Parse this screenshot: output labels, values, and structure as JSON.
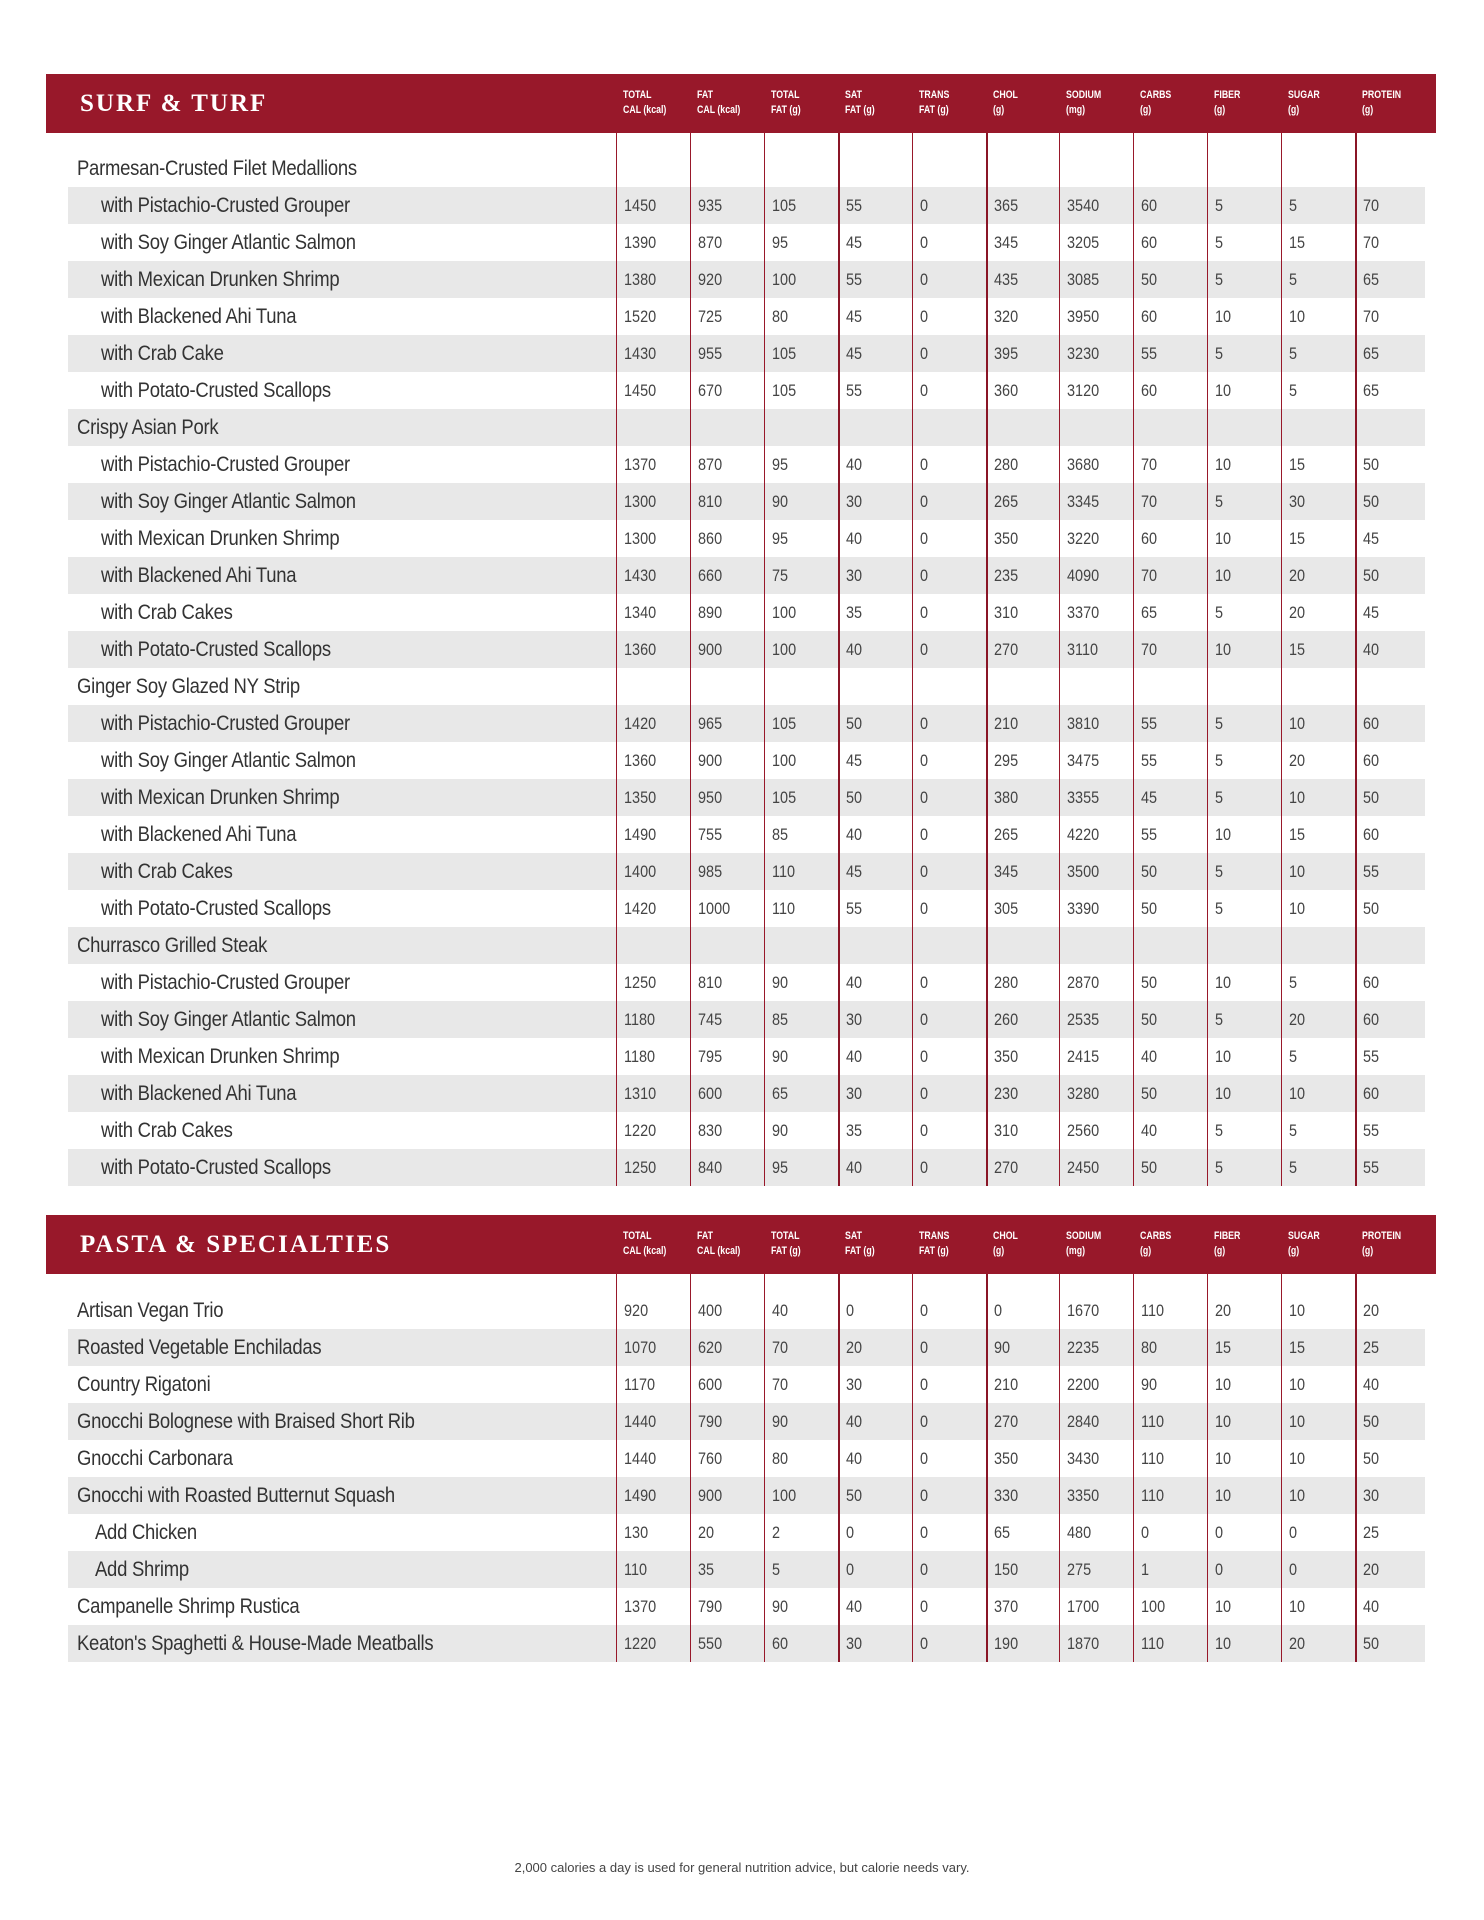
{
  "colors": {
    "brand": "#98182a",
    "row_shade": "#e8e8e8"
  },
  "columns": [
    "TOTAL\nCAL (kcal)",
    "FAT\nCAL (kcal)",
    "TOTAL\nFAT (g)",
    "SAT\nFAT (g)",
    "TRANS\nFAT (g)",
    "CHOL\n(g)",
    "SODIUM\n(mg)",
    "CARBS\n(g)",
    "FIBER\n(g)",
    "SUGAR\n(g)",
    "PROTEIN\n(g)"
  ],
  "sections": [
    {
      "title": "SURF & TURF",
      "rows": [
        {
          "name": "Parmesan-Crusted Filet Medallions",
          "level": 0,
          "values": []
        },
        {
          "name": "with Pistachio-Crusted Grouper",
          "level": 1,
          "values": [
            "1450",
            "935",
            "105",
            "55",
            "0",
            "365",
            "3540",
            "60",
            "5",
            "5",
            "70"
          ]
        },
        {
          "name": "with Soy Ginger Atlantic Salmon",
          "level": 1,
          "values": [
            "1390",
            "870",
            "95",
            "45",
            "0",
            "345",
            "3205",
            "60",
            "5",
            "15",
            "70"
          ]
        },
        {
          "name": "with Mexican Drunken Shrimp",
          "level": 1,
          "values": [
            "1380",
            "920",
            "100",
            "55",
            "0",
            "435",
            "3085",
            "50",
            "5",
            "5",
            "65"
          ]
        },
        {
          "name": "with Blackened Ahi Tuna",
          "level": 1,
          "values": [
            "1520",
            "725",
            "80",
            "45",
            "0",
            "320",
            "3950",
            "60",
            "10",
            "10",
            "70"
          ]
        },
        {
          "name": "with Crab Cake",
          "level": 1,
          "values": [
            "1430",
            "955",
            "105",
            "45",
            "0",
            "395",
            "3230",
            "55",
            "5",
            "5",
            "65"
          ]
        },
        {
          "name": "with Potato-Crusted Scallops",
          "level": 1,
          "values": [
            "1450",
            "670",
            "105",
            "55",
            "0",
            "360",
            "3120",
            "60",
            "10",
            "5",
            "65"
          ]
        },
        {
          "name": "Crispy Asian Pork",
          "level": 0,
          "values": []
        },
        {
          "name": "with Pistachio-Crusted Grouper",
          "level": 1,
          "values": [
            "1370",
            "870",
            "95",
            "40",
            "0",
            "280",
            "3680",
            "70",
            "10",
            "15",
            "50"
          ]
        },
        {
          "name": "with Soy Ginger Atlantic Salmon",
          "level": 1,
          "values": [
            "1300",
            "810",
            "90",
            "30",
            "0",
            "265",
            "3345",
            "70",
            "5",
            "30",
            "50"
          ]
        },
        {
          "name": "with Mexican Drunken Shrimp",
          "level": 1,
          "values": [
            "1300",
            "860",
            "95",
            "40",
            "0",
            "350",
            "3220",
            "60",
            "10",
            "15",
            "45"
          ]
        },
        {
          "name": "with Blackened Ahi Tuna",
          "level": 1,
          "values": [
            "1430",
            "660",
            "75",
            "30",
            "0",
            "235",
            "4090",
            "70",
            "10",
            "20",
            "50"
          ]
        },
        {
          "name": "with Crab Cakes",
          "level": 1,
          "values": [
            "1340",
            "890",
            "100",
            "35",
            "0",
            "310",
            "3370",
            "65",
            "5",
            "20",
            "45"
          ]
        },
        {
          "name": "with Potato-Crusted Scallops",
          "level": 1,
          "values": [
            "1360",
            "900",
            "100",
            "40",
            "0",
            "270",
            "3110",
            "70",
            "10",
            "15",
            "40"
          ]
        },
        {
          "name": "Ginger Soy Glazed NY Strip",
          "level": 0,
          "values": []
        },
        {
          "name": "with Pistachio-Crusted Grouper",
          "level": 1,
          "values": [
            "1420",
            "965",
            "105",
            "50",
            "0",
            "210",
            "3810",
            "55",
            "5",
            "10",
            "60"
          ]
        },
        {
          "name": "with Soy Ginger Atlantic Salmon",
          "level": 1,
          "values": [
            "1360",
            "900",
            "100",
            "45",
            "0",
            "295",
            "3475",
            "55",
            "5",
            "20",
            "60"
          ]
        },
        {
          "name": "with Mexican Drunken Shrimp",
          "level": 1,
          "values": [
            "1350",
            "950",
            "105",
            "50",
            "0",
            "380",
            "3355",
            "45",
            "5",
            "10",
            "50"
          ]
        },
        {
          "name": "with Blackened Ahi Tuna",
          "level": 1,
          "values": [
            "1490",
            "755",
            "85",
            "40",
            "0",
            "265",
            "4220",
            "55",
            "10",
            "15",
            "60"
          ]
        },
        {
          "name": "with Crab Cakes",
          "level": 1,
          "values": [
            "1400",
            "985",
            "110",
            "45",
            "0",
            "345",
            "3500",
            "50",
            "5",
            "10",
            "55"
          ]
        },
        {
          "name": "with Potato-Crusted Scallops",
          "level": 1,
          "values": [
            "1420",
            "1000",
            "110",
            "55",
            "0",
            "305",
            "3390",
            "50",
            "5",
            "10",
            "50"
          ]
        },
        {
          "name": "Churrasco Grilled Steak",
          "level": 0,
          "values": []
        },
        {
          "name": "with Pistachio-Crusted Grouper",
          "level": 1,
          "values": [
            "1250",
            "810",
            "90",
            "40",
            "0",
            "280",
            "2870",
            "50",
            "10",
            "5",
            "60"
          ]
        },
        {
          "name": "with Soy Ginger Atlantic Salmon",
          "level": 1,
          "values": [
            "1180",
            "745",
            "85",
            "30",
            "0",
            "260",
            "2535",
            "50",
            "5",
            "20",
            "60"
          ]
        },
        {
          "name": "with Mexican Drunken Shrimp",
          "level": 1,
          "values": [
            "1180",
            "795",
            "90",
            "40",
            "0",
            "350",
            "2415",
            "40",
            "10",
            "5",
            "55"
          ]
        },
        {
          "name": "with Blackened Ahi Tuna",
          "level": 1,
          "values": [
            "1310",
            "600",
            "65",
            "30",
            "0",
            "230",
            "3280",
            "50",
            "10",
            "10",
            "60"
          ]
        },
        {
          "name": "with Crab Cakes",
          "level": 1,
          "values": [
            "1220",
            "830",
            "90",
            "35",
            "0",
            "310",
            "2560",
            "40",
            "5",
            "5",
            "55"
          ]
        },
        {
          "name": "with Potato-Crusted Scallops",
          "level": 1,
          "values": [
            "1250",
            "840",
            "95",
            "40",
            "0",
            "270",
            "2450",
            "50",
            "5",
            "5",
            "55"
          ]
        }
      ]
    },
    {
      "title": "PASTA & SPECIALTIES",
      "rows": [
        {
          "name": "Artisan Vegan Trio",
          "level": 0,
          "values": [
            "920",
            "400",
            "40",
            "0",
            "0",
            "0",
            "1670",
            "110",
            "20",
            "10",
            "20"
          ]
        },
        {
          "name": "Roasted Vegetable Enchiladas",
          "level": 0,
          "values": [
            "1070",
            "620",
            "70",
            "20",
            "0",
            "90",
            "2235",
            "80",
            "15",
            "15",
            "25"
          ]
        },
        {
          "name": "Country Rigatoni",
          "level": 0,
          "values": [
            "1170",
            "600",
            "70",
            "30",
            "0",
            "210",
            "2200",
            "90",
            "10",
            "10",
            "40"
          ]
        },
        {
          "name": "Gnocchi Bolognese with Braised Short Rib",
          "level": 0,
          "values": [
            "1440",
            "790",
            "90",
            "40",
            "0",
            "270",
            "2840",
            "110",
            "10",
            "10",
            "50"
          ]
        },
        {
          "name": "Gnocchi Carbonara",
          "level": 0,
          "values": [
            "1440",
            "760",
            "80",
            "40",
            "0",
            "350",
            "3430",
            "110",
            "10",
            "10",
            "50"
          ]
        },
        {
          "name": "Gnocchi with Roasted Butternut Squash",
          "level": 0,
          "values": [
            "1490",
            "900",
            "100",
            "50",
            "0",
            "330",
            "3350",
            "110",
            "10",
            "10",
            "30"
          ]
        },
        {
          "name": "Add Chicken",
          "level": 2,
          "values": [
            "130",
            "20",
            "2",
            "0",
            "0",
            "65",
            "480",
            "0",
            "0",
            "0",
            "25"
          ]
        },
        {
          "name": "Add Shrimp",
          "level": 2,
          "values": [
            "110",
            "35",
            "5",
            "0",
            "0",
            "150",
            "275",
            "1",
            "0",
            "0",
            "20"
          ]
        },
        {
          "name": "Campanelle Shrimp Rustica",
          "level": 0,
          "values": [
            "1370",
            "790",
            "90",
            "40",
            "0",
            "370",
            "1700",
            "100",
            "10",
            "10",
            "40"
          ]
        },
        {
          "name": "Keaton's Spaghetti & House-Made Meatballs",
          "level": 0,
          "values": [
            "1220",
            "550",
            "60",
            "30",
            "0",
            "190",
            "1870",
            "110",
            "10",
            "20",
            "50"
          ]
        }
      ]
    }
  ],
  "footer": "2,000 calories a day is used for general nutrition advice, but calorie needs vary."
}
